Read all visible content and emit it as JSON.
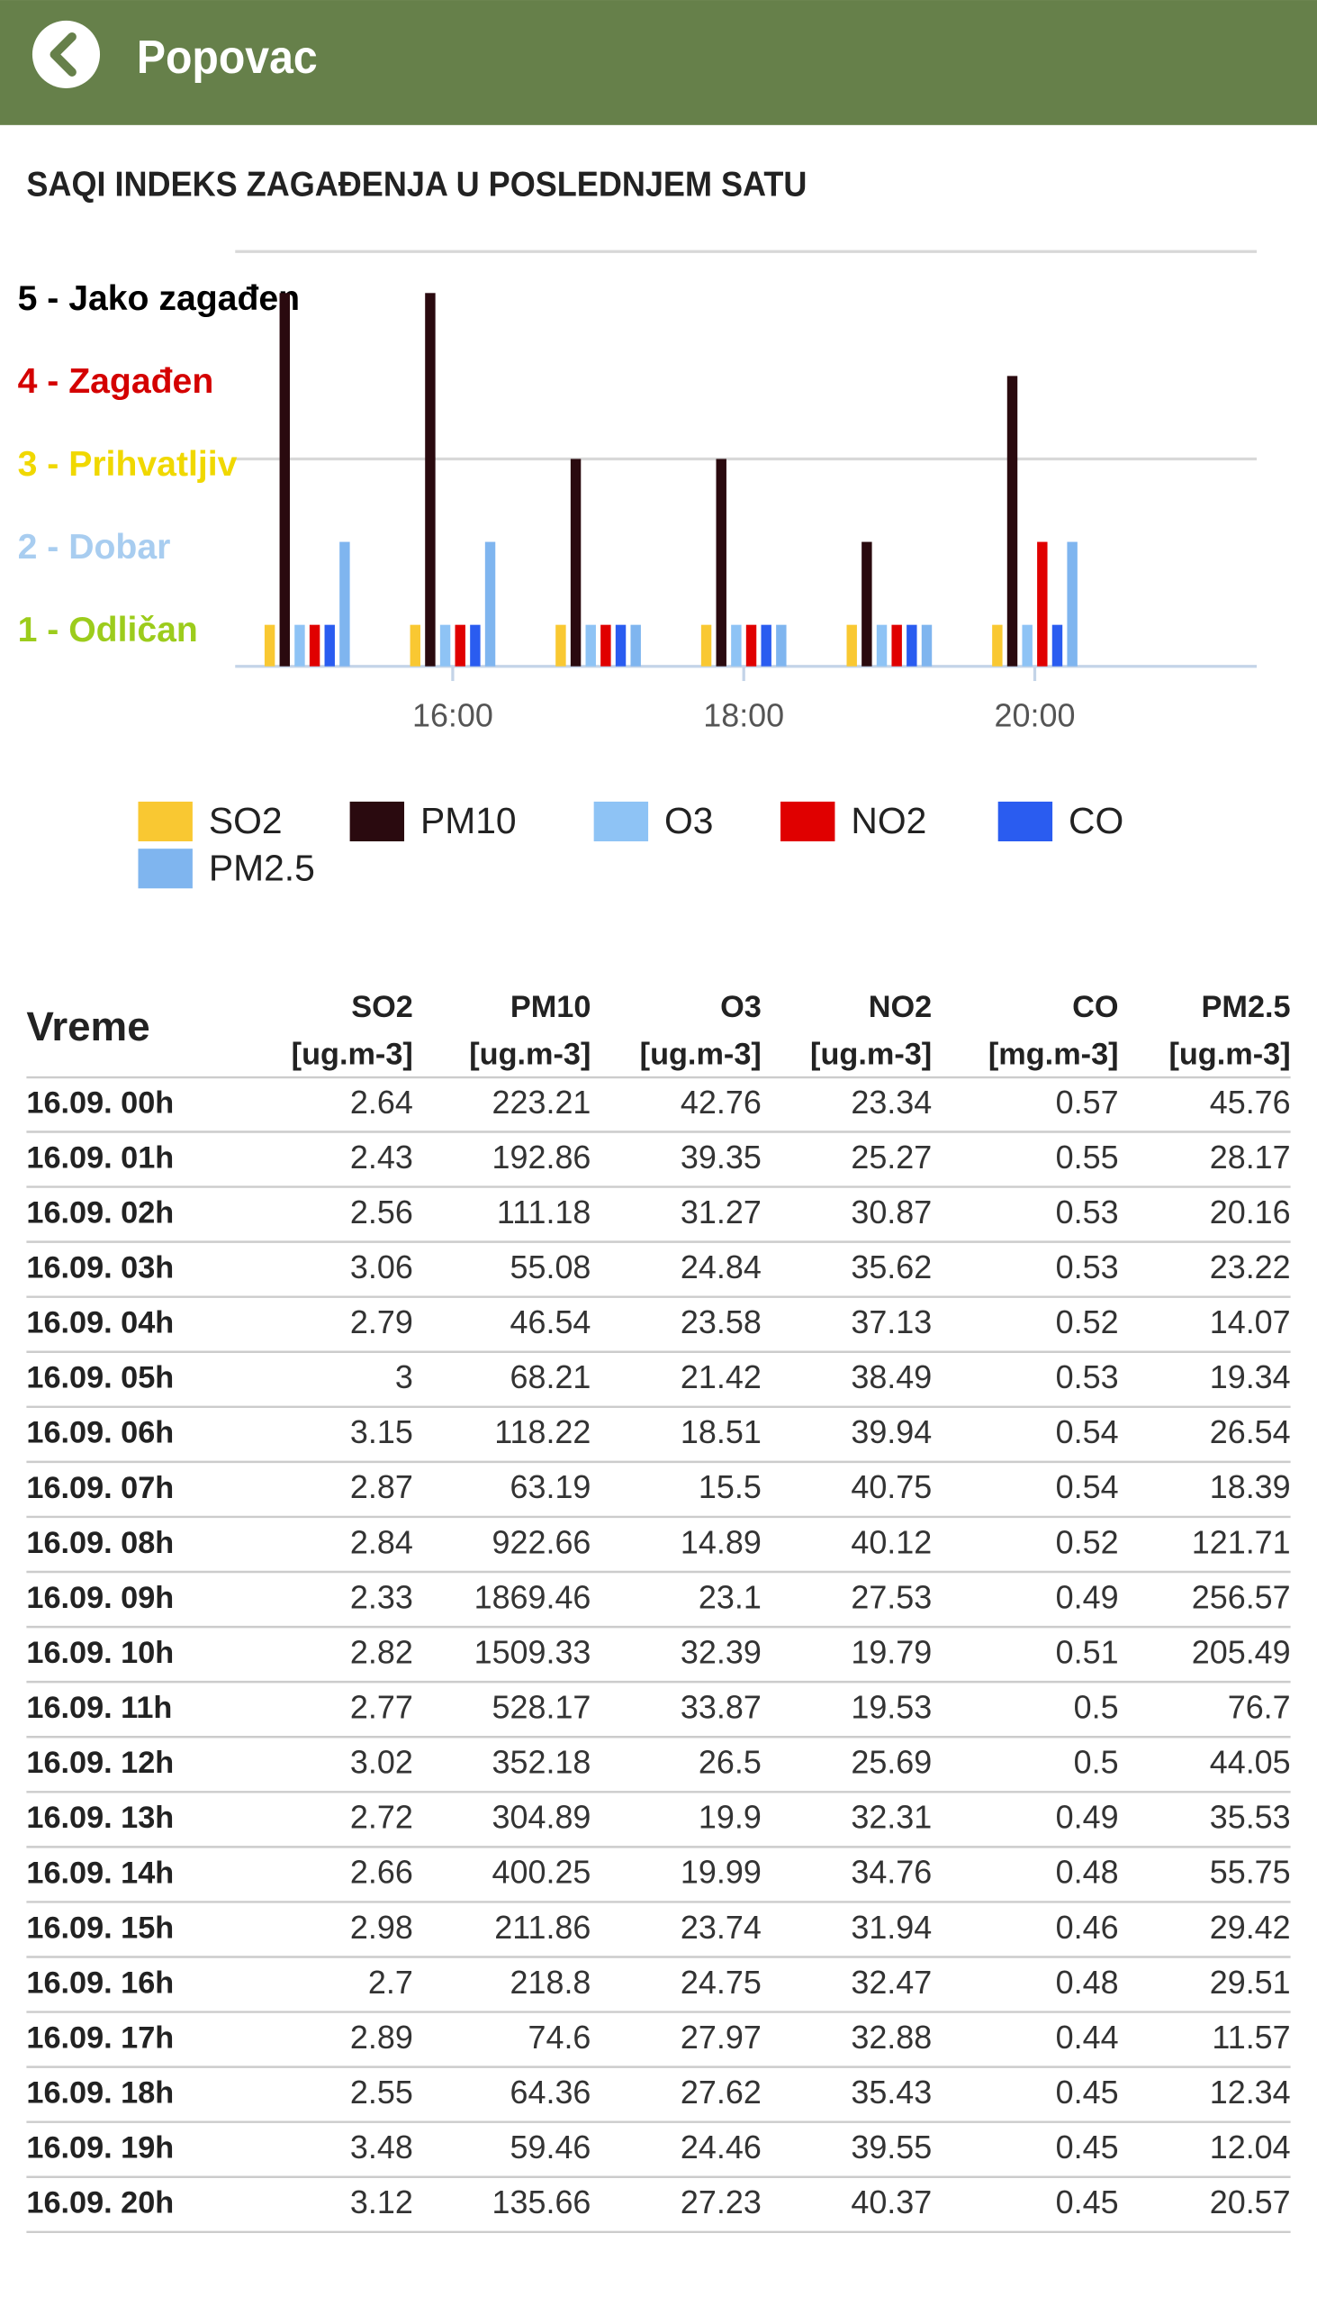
{
  "header": {
    "title": "Popovac"
  },
  "chart_data": {
    "type": "bar",
    "title": "SAQI INDEKS ZAGAĐENJA U POSLEDNJEM SATU",
    "categories": [
      null,
      "16:00",
      null,
      "18:00",
      null,
      "20:00"
    ],
    "series": [
      {
        "name": "SO2",
        "color": "#f9c832",
        "values": [
          1,
          1,
          1,
          1,
          1,
          1
        ]
      },
      {
        "name": "PM10",
        "color": "#2a0a0f",
        "values": [
          5,
          5,
          3,
          3,
          2,
          4
        ]
      },
      {
        "name": "O3",
        "color": "#8ec3f5",
        "values": [
          1,
          1,
          1,
          1,
          1,
          1
        ]
      },
      {
        "name": "NO2",
        "color": "#e00000",
        "values": [
          1,
          1,
          1,
          1,
          1,
          2
        ]
      },
      {
        "name": "CO",
        "color": "#2a5cf0",
        "values": [
          1,
          1,
          1,
          1,
          1,
          1
        ]
      },
      {
        "name": "PM2.5",
        "color": "#7fb5ef",
        "values": [
          2,
          2,
          1,
          1,
          1,
          2
        ]
      }
    ],
    "ylim": [
      0.5,
      5.5
    ],
    "yticks": [
      {
        "value": 1,
        "label": "1 - Odličan",
        "color": "#9ccc1c"
      },
      {
        "value": 2,
        "label": "2 - Dobar",
        "color": "#a8cdf0"
      },
      {
        "value": 3,
        "label": "3 - Prihvatljiv",
        "color": "#f0d800"
      },
      {
        "value": 4,
        "label": "4 - Zagađen",
        "color": "#d40000"
      },
      {
        "value": 5,
        "label": "5 - Jako zagađen",
        "color": "#000000"
      }
    ],
    "grid": true
  },
  "table": {
    "first_column": "Vreme",
    "columns": [
      {
        "name": "SO2",
        "unit": "[ug.m-3]"
      },
      {
        "name": "PM10",
        "unit": "[ug.m-3]"
      },
      {
        "name": "O3",
        "unit": "[ug.m-3]"
      },
      {
        "name": "NO2",
        "unit": "[ug.m-3]"
      },
      {
        "name": "CO",
        "unit": "[mg.m-3]"
      },
      {
        "name": "PM2.5",
        "unit": "[ug.m-3]"
      }
    ],
    "rows": [
      [
        "16.09. 00h",
        2.64,
        223.21,
        42.76,
        23.34,
        0.57,
        45.76
      ],
      [
        "16.09. 01h",
        2.43,
        192.86,
        39.35,
        25.27,
        0.55,
        28.17
      ],
      [
        "16.09. 02h",
        2.56,
        111.18,
        31.27,
        30.87,
        0.53,
        20.16
      ],
      [
        "16.09. 03h",
        3.06,
        55.08,
        24.84,
        35.62,
        0.53,
        23.22
      ],
      [
        "16.09. 04h",
        2.79,
        46.54,
        23.58,
        37.13,
        0.52,
        14.07
      ],
      [
        "16.09. 05h",
        3,
        68.21,
        21.42,
        38.49,
        0.53,
        19.34
      ],
      [
        "16.09. 06h",
        3.15,
        118.22,
        18.51,
        39.94,
        0.54,
        26.54
      ],
      [
        "16.09. 07h",
        2.87,
        63.19,
        15.5,
        40.75,
        0.54,
        18.39
      ],
      [
        "16.09. 08h",
        2.84,
        922.66,
        14.89,
        40.12,
        0.52,
        121.71
      ],
      [
        "16.09. 09h",
        2.33,
        1869.46,
        23.1,
        27.53,
        0.49,
        256.57
      ],
      [
        "16.09. 10h",
        2.82,
        1509.33,
        32.39,
        19.79,
        0.51,
        205.49
      ],
      [
        "16.09. 11h",
        2.77,
        528.17,
        33.87,
        19.53,
        0.5,
        76.7
      ],
      [
        "16.09. 12h",
        3.02,
        352.18,
        26.5,
        25.69,
        0.5,
        44.05
      ],
      [
        "16.09. 13h",
        2.72,
        304.89,
        19.9,
        32.31,
        0.49,
        35.53
      ],
      [
        "16.09. 14h",
        2.66,
        400.25,
        19.99,
        34.76,
        0.48,
        55.75
      ],
      [
        "16.09. 15h",
        2.98,
        211.86,
        23.74,
        31.94,
        0.46,
        29.42
      ],
      [
        "16.09. 16h",
        2.7,
        218.8,
        24.75,
        32.47,
        0.48,
        29.51
      ],
      [
        "16.09. 17h",
        2.89,
        74.6,
        27.97,
        32.88,
        0.44,
        11.57
      ],
      [
        "16.09. 18h",
        2.55,
        64.36,
        27.62,
        35.43,
        0.45,
        12.34
      ],
      [
        "16.09. 19h",
        3.48,
        59.46,
        24.46,
        39.55,
        0.45,
        12.04
      ],
      [
        "16.09. 20h",
        3.12,
        135.66,
        27.23,
        40.37,
        0.45,
        20.57
      ]
    ]
  }
}
